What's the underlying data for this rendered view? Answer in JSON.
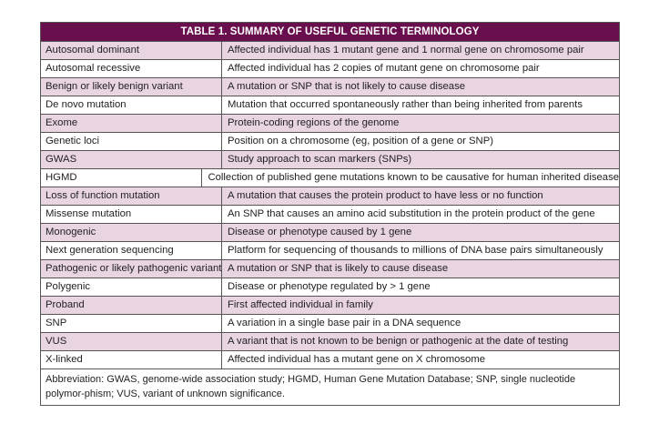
{
  "title": "TABLE 1. SUMMARY OF USEFUL GENETIC TERMINOLOGY",
  "rows": [
    [
      "Autosomal dominant",
      "Affected individual has 1 mutant gene and 1 normal gene on chromosome pair"
    ],
    [
      "Autosomal recessive",
      "Affected individual has 2 copies of mutant gene on chromosome pair"
    ],
    [
      "Benign or likely benign variant",
      "A mutation or SNP that is not likely to cause disease"
    ],
    [
      "De novo mutation",
      "Mutation that occurred spontaneously rather than being inherited from parents"
    ],
    [
      "Exome",
      "Protein-coding regions of the genome"
    ],
    [
      "Genetic loci",
      "Position on a chromosome (eg, position of a gene or SNP)"
    ],
    [
      "GWAS",
      "Study approach to scan markers (SNPs)"
    ],
    [
      "HGMD",
      "Collection of published gene mutations known to be causative for human inherited disease"
    ],
    [
      "Loss of function mutation",
      "A mutation that causes the protein product to have less or no function"
    ],
    [
      "Missense mutation",
      "An SNP that causes an amino acid substitution in the protein product of the gene"
    ],
    [
      "Monogenic",
      "Disease or phenotype caused by 1 gene"
    ],
    [
      "Next generation sequencing",
      "Platform for sequencing of thousands to millions of DNA base pairs simultaneously"
    ],
    [
      "Pathogenic or likely pathogenic variant",
      "A mutation or SNP that is likely to cause disease"
    ],
    [
      "Polygenic",
      "Disease or phenotype regulated by > 1 gene"
    ],
    [
      "Proband",
      "First affected individual in family"
    ],
    [
      "SNP",
      "A variation in a single base pair in a DNA sequence"
    ],
    [
      "VUS",
      "A variant that is not known to be benign or pathogenic at the date of testing"
    ],
    [
      "X-linked",
      "Affected individual has a mutant gene on X chromosome"
    ]
  ],
  "footnote": "Abbreviation: GWAS, genome-wide association study; HGMD, Human Gene Mutation Database; SNP, single nucleotide polymor-phism; VUS, variant of unknown significance.",
  "colors": {
    "header": "#6a0f4e",
    "stripe": "#e9d4e2"
  }
}
